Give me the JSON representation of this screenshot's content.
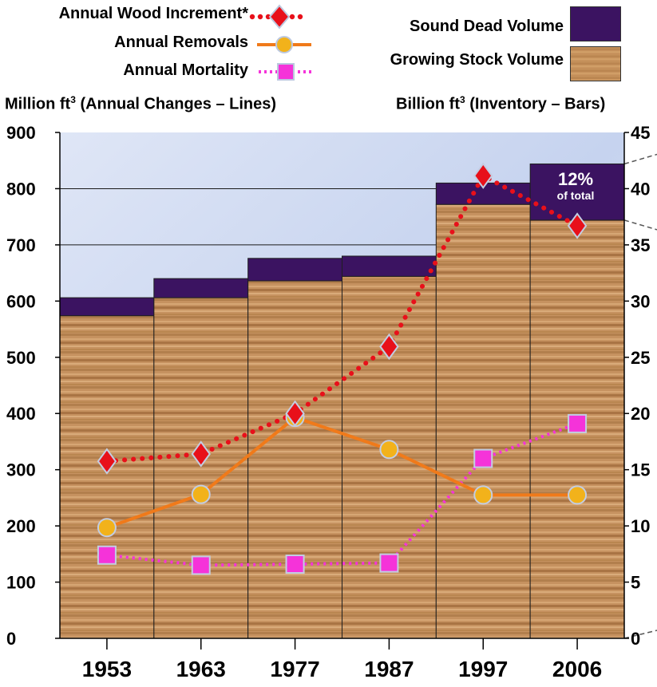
{
  "legend": {
    "wood_increment": "Annual Wood Increment*",
    "removals": "Annual Removals",
    "mortality": "Annual Mortality",
    "dead_volume": "Sound Dead Volume",
    "growing_volume": "Growing Stock Volume"
  },
  "axis_titles": {
    "left_prefix": "Million ft",
    "left_suffix": " (Annual Changes – Lines)",
    "right_prefix": "Billion ft",
    "right_suffix": " (Inventory –  Bars)",
    "superscript": "3"
  },
  "callout": {
    "percent": "12%",
    "text": "of total"
  },
  "colors": {
    "increment": "#e8101a",
    "removals": "#f07a1a",
    "removals_marker": "#f2b21b",
    "mortality": "#f533d9",
    "dead": "#3b1361",
    "growing": "#c8945e",
    "sky": "#c9d6f0"
  },
  "chart_data": {
    "type": "bar+line",
    "categories": [
      "1953",
      "1963",
      "1977",
      "1987",
      "1997",
      "2006"
    ],
    "left_axis": {
      "label": "Million ft3 (Annual Changes – Lines)",
      "ylim": [
        0,
        900
      ],
      "ticks": [
        "0",
        "100",
        "200",
        "300",
        "400",
        "500",
        "600",
        "700",
        "800",
        "900"
      ]
    },
    "right_axis": {
      "label": "Billion ft3 (Inventory –  Bars)",
      "ylim": [
        0,
        45
      ],
      "ticks": [
        "0",
        "5",
        "10",
        "15",
        "20",
        "25",
        "30",
        "35",
        "40",
        "45"
      ]
    },
    "bars": [
      {
        "name": "Growing Stock Volume",
        "values": [
          28.7,
          30.3,
          31.8,
          32.2,
          38.6,
          37.2
        ]
      },
      {
        "name": "Sound Dead Volume",
        "values": [
          1.6,
          1.7,
          2.0,
          1.8,
          1.9,
          5.0
        ]
      }
    ],
    "lines": [
      {
        "name": "Annual Wood Increment*",
        "values": [
          315,
          328,
          400,
          519,
          823,
          734
        ]
      },
      {
        "name": "Annual Removals",
        "values": [
          197,
          256,
          393,
          336,
          255,
          255
        ]
      },
      {
        "name": "Annual Mortality",
        "values": [
          148,
          130,
          132,
          134,
          320,
          382
        ]
      }
    ],
    "annotations": [
      "12% of total"
    ],
    "grid": "horizontal"
  }
}
